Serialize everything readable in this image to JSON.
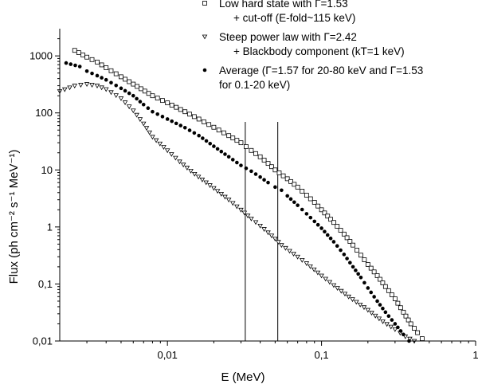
{
  "chart_data": {
    "type": "scatter",
    "xlabel": "E (MeV)",
    "ylabel": "Flux (ph cm⁻² s⁻¹ MeV⁻¹)",
    "x_scale": "log",
    "y_scale": "log",
    "xlim": [
      0.002,
      1
    ],
    "ylim": [
      0.01,
      3000
    ],
    "x_ticks": [
      0.01,
      0.1,
      1
    ],
    "x_tick_labels": [
      "0,01",
      "0,1",
      "1"
    ],
    "y_ticks": [
      0.01,
      0.1,
      1,
      10,
      100,
      1000
    ],
    "y_tick_labels": [
      "0,01",
      "0,1",
      "1",
      "10",
      "100",
      "1000"
    ],
    "vertical_lines": [
      0.032,
      0.052
    ],
    "legend_position": "top-right",
    "legend": [
      {
        "marker": "square",
        "lines": [
          "Low hard state with Γ=1.53",
          "+ cut-off (E-fold~115 keV)"
        ]
      },
      {
        "marker": "triangle",
        "lines": [
          "Steep power law with Γ=2.42",
          "+ Blackbody component (kT=1 keV)"
        ]
      },
      {
        "marker": "dot",
        "lines": [
          "Average (Γ=1.57 for 20-80 keV and Γ=1.53",
          "for 0.1-20 keV)"
        ]
      }
    ],
    "series": [
      {
        "marker": "square",
        "points": [
          [
            0.0025,
            1250
          ],
          [
            0.003,
            950
          ],
          [
            0.0035,
            780
          ],
          [
            0.004,
            620
          ],
          [
            0.005,
            430
          ],
          [
            0.006,
            320
          ],
          [
            0.008,
            200
          ],
          [
            0.01,
            150
          ],
          [
            0.013,
            105
          ],
          [
            0.016,
            78
          ],
          [
            0.02,
            56
          ],
          [
            0.025,
            40
          ],
          [
            0.03,
            30
          ],
          [
            0.035,
            22
          ],
          [
            0.04,
            17
          ],
          [
            0.045,
            13
          ],
          [
            0.05,
            10
          ],
          [
            0.06,
            7
          ],
          [
            0.07,
            5
          ],
          [
            0.08,
            3.6
          ],
          [
            0.09,
            2.7
          ],
          [
            0.1,
            2
          ],
          [
            0.12,
            1.2
          ],
          [
            0.14,
            0.75
          ],
          [
            0.16,
            0.48
          ],
          [
            0.18,
            0.32
          ],
          [
            0.2,
            0.22
          ],
          [
            0.23,
            0.14
          ],
          [
            0.26,
            0.09
          ],
          [
            0.3,
            0.055
          ],
          [
            0.34,
            0.032
          ],
          [
            0.38,
            0.02
          ],
          [
            0.42,
            0.014
          ],
          [
            0.45,
            0.011
          ]
        ]
      },
      {
        "marker": "triangle",
        "points": [
          [
            0.002,
            240
          ],
          [
            0.0025,
            300
          ],
          [
            0.003,
            320
          ],
          [
            0.0035,
            300
          ],
          [
            0.004,
            260
          ],
          [
            0.005,
            180
          ],
          [
            0.006,
            110
          ],
          [
            0.007,
            65
          ],
          [
            0.008,
            38
          ],
          [
            0.01,
            22
          ],
          [
            0.012,
            14
          ],
          [
            0.015,
            8.5
          ],
          [
            0.02,
            4.8
          ],
          [
            0.025,
            3
          ],
          [
            0.03,
            2
          ],
          [
            0.035,
            1.4
          ],
          [
            0.04,
            1.05
          ],
          [
            0.045,
            0.8
          ],
          [
            0.05,
            0.62
          ],
          [
            0.055,
            0.48
          ],
          [
            0.07,
            0.3
          ],
          [
            0.08,
            0.23
          ],
          [
            0.1,
            0.14
          ],
          [
            0.12,
            0.095
          ],
          [
            0.15,
            0.06
          ],
          [
            0.2,
            0.035
          ],
          [
            0.25,
            0.022
          ],
          [
            0.3,
            0.016
          ],
          [
            0.35,
            0.012
          ],
          [
            0.4,
            0.01
          ]
        ]
      },
      {
        "marker": "dot",
        "points": [
          [
            0.0022,
            750
          ],
          [
            0.0027,
            650
          ],
          [
            0.003,
            540
          ],
          [
            0.0035,
            450
          ],
          [
            0.004,
            380
          ],
          [
            0.005,
            270
          ],
          [
            0.006,
            200
          ],
          [
            0.007,
            140
          ],
          [
            0.008,
            105
          ],
          [
            0.01,
            78
          ],
          [
            0.013,
            55
          ],
          [
            0.016,
            40
          ],
          [
            0.02,
            26
          ],
          [
            0.025,
            17
          ],
          [
            0.03,
            12
          ],
          [
            0.035,
            9.5
          ],
          [
            0.04,
            7.5
          ],
          [
            0.045,
            6
          ],
          [
            0.05,
            5
          ],
          [
            0.055,
            4.4
          ],
          [
            0.06,
            3.5
          ],
          [
            0.07,
            2.4
          ],
          [
            0.08,
            1.7
          ],
          [
            0.09,
            1.25
          ],
          [
            0.1,
            0.95
          ],
          [
            0.12,
            0.55
          ],
          [
            0.14,
            0.33
          ],
          [
            0.16,
            0.2
          ],
          [
            0.18,
            0.13
          ],
          [
            0.2,
            0.085
          ],
          [
            0.23,
            0.05
          ],
          [
            0.26,
            0.032
          ],
          [
            0.3,
            0.02
          ],
          [
            0.34,
            0.013
          ],
          [
            0.37,
            0.01
          ]
        ]
      }
    ]
  }
}
